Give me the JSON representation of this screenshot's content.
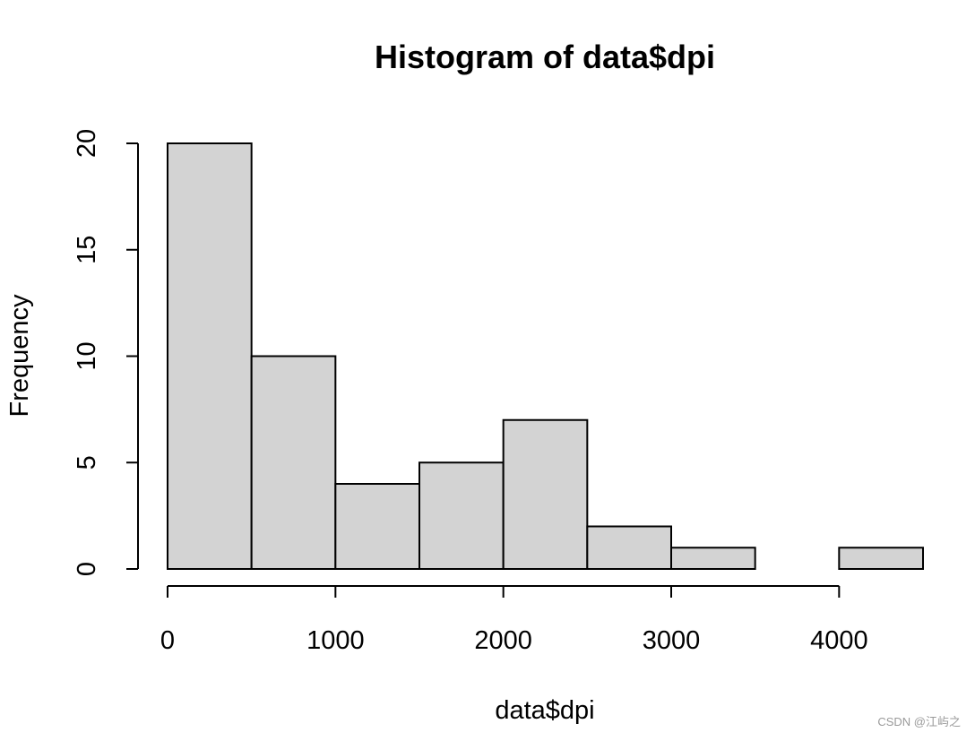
{
  "chart_data": {
    "type": "bar",
    "title": "Histogram of data$dpi",
    "xlabel": "data$dpi",
    "ylabel": "Frequency",
    "bins": [
      {
        "from": 0,
        "to": 500,
        "count": 20
      },
      {
        "from": 500,
        "to": 1000,
        "count": 10
      },
      {
        "from": 1000,
        "to": 1500,
        "count": 4
      },
      {
        "from": 1500,
        "to": 2000,
        "count": 5
      },
      {
        "from": 2000,
        "to": 2500,
        "count": 7
      },
      {
        "from": 2500,
        "to": 3000,
        "count": 2
      },
      {
        "from": 3000,
        "to": 3500,
        "count": 1
      },
      {
        "from": 3500,
        "to": 4000,
        "count": 0
      },
      {
        "from": 4000,
        "to": 4500,
        "count": 1
      }
    ],
    "xlim": [
      0,
      4500
    ],
    "ylim": [
      0,
      20
    ],
    "x_ticks": [
      0,
      1000,
      2000,
      3000,
      4000
    ],
    "x_tick_labels": [
      "0",
      "1000",
      "2000",
      "3000",
      "4000"
    ],
    "y_ticks": [
      0,
      5,
      10,
      15,
      20
    ],
    "y_tick_labels": [
      "0",
      "5",
      "10",
      "15",
      "20"
    ],
    "bar_fill": "#d3d3d3",
    "bar_stroke": "#000000",
    "grid": false,
    "legend": "none"
  },
  "watermark": "CSDN @江屿之"
}
